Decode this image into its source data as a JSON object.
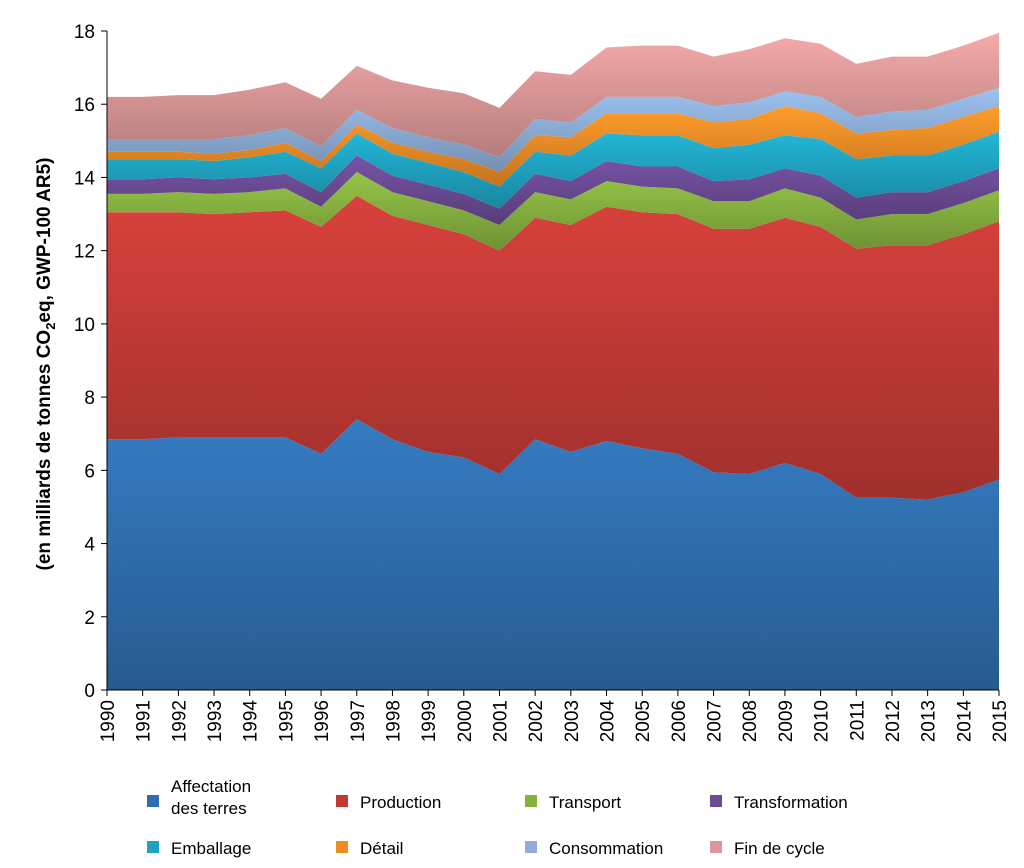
{
  "chart_data": {
    "type": "area",
    "stacked": true,
    "title": "",
    "xlabel": "",
    "ylabel_parts": {
      "before": "(en milliards de tonnes CO",
      "sub": "2",
      "after": "eq, GWP-100 AR5)"
    },
    "ylim": [
      0,
      18
    ],
    "yticks": [
      "0",
      "2",
      "4",
      "6",
      "8",
      "10",
      "12",
      "14",
      "16",
      "18"
    ],
    "grid": false,
    "legend_position": "bottom",
    "x": [
      "1990",
      "1991",
      "1992",
      "1993",
      "1994",
      "1995",
      "1996",
      "1997",
      "1998",
      "1999",
      "2000",
      "2001",
      "2002",
      "2003",
      "2004",
      "2005",
      "2006",
      "2007",
      "2008",
      "2009",
      "2010",
      "2011",
      "2012",
      "2013",
      "2014",
      "2015"
    ],
    "series": [
      {
        "name": [
          "Affectation",
          "des terres"
        ],
        "color": "#2f6fae",
        "values": [
          6.85,
          6.85,
          6.9,
          6.9,
          6.9,
          6.9,
          6.45,
          7.4,
          6.85,
          6.5,
          6.35,
          5.9,
          6.85,
          6.5,
          6.8,
          6.6,
          6.45,
          5.95,
          5.9,
          6.2,
          5.9,
          5.25,
          5.25,
          5.2,
          5.4,
          5.75
        ]
      },
      {
        "name": [
          "Production"
        ],
        "color": "#c23a36",
        "values": [
          6.2,
          6.2,
          6.15,
          6.1,
          6.15,
          6.2,
          6.2,
          6.1,
          6.1,
          6.2,
          6.1,
          6.1,
          6.05,
          6.2,
          6.4,
          6.45,
          6.55,
          6.65,
          6.7,
          6.7,
          6.75,
          6.8,
          6.9,
          6.95,
          7.05,
          7.05
        ]
      },
      {
        "name": [
          "Transport"
        ],
        "color": "#86b13f",
        "values": [
          0.5,
          0.5,
          0.55,
          0.55,
          0.55,
          0.6,
          0.55,
          0.65,
          0.65,
          0.65,
          0.65,
          0.7,
          0.7,
          0.7,
          0.7,
          0.7,
          0.7,
          0.75,
          0.75,
          0.8,
          0.8,
          0.8,
          0.85,
          0.85,
          0.85,
          0.85
        ]
      },
      {
        "name": [
          "Transformation"
        ],
        "color": "#6a4b94",
        "values": [
          0.4,
          0.4,
          0.4,
          0.4,
          0.4,
          0.4,
          0.4,
          0.45,
          0.45,
          0.45,
          0.45,
          0.45,
          0.5,
          0.5,
          0.55,
          0.55,
          0.6,
          0.55,
          0.6,
          0.55,
          0.6,
          0.6,
          0.6,
          0.6,
          0.6,
          0.6
        ]
      },
      {
        "name": [
          "Emballage"
        ],
        "color": "#1fa3c1",
        "values": [
          0.55,
          0.55,
          0.5,
          0.5,
          0.55,
          0.6,
          0.65,
          0.6,
          0.6,
          0.6,
          0.6,
          0.6,
          0.6,
          0.7,
          0.75,
          0.85,
          0.85,
          0.9,
          0.95,
          0.9,
          1.0,
          1.05,
          1.0,
          1.0,
          1.0,
          1.0
        ]
      },
      {
        "name": [
          "Détail"
        ],
        "color": "#ef8c26",
        "values": [
          0.2,
          0.2,
          0.2,
          0.2,
          0.2,
          0.25,
          0.2,
          0.25,
          0.3,
          0.3,
          0.35,
          0.4,
          0.45,
          0.5,
          0.55,
          0.6,
          0.6,
          0.7,
          0.7,
          0.8,
          0.7,
          0.7,
          0.7,
          0.75,
          0.75,
          0.7
        ]
      },
      {
        "name": [
          "Consommation"
        ],
        "color": "#8daed8",
        "values": [
          0.35,
          0.35,
          0.35,
          0.4,
          0.4,
          0.4,
          0.4,
          0.4,
          0.4,
          0.4,
          0.4,
          0.4,
          0.45,
          0.4,
          0.45,
          0.45,
          0.45,
          0.45,
          0.45,
          0.4,
          0.45,
          0.45,
          0.5,
          0.5,
          0.5,
          0.5
        ]
      },
      {
        "name": [
          "Fin de cycle"
        ],
        "color": "#dc9898",
        "values": [
          1.15,
          1.15,
          1.2,
          1.2,
          1.25,
          1.25,
          1.3,
          1.2,
          1.3,
          1.35,
          1.4,
          1.35,
          1.3,
          1.3,
          1.35,
          1.4,
          1.4,
          1.35,
          1.45,
          1.45,
          1.45,
          1.45,
          1.5,
          1.45,
          1.45,
          1.5
        ]
      }
    ]
  }
}
